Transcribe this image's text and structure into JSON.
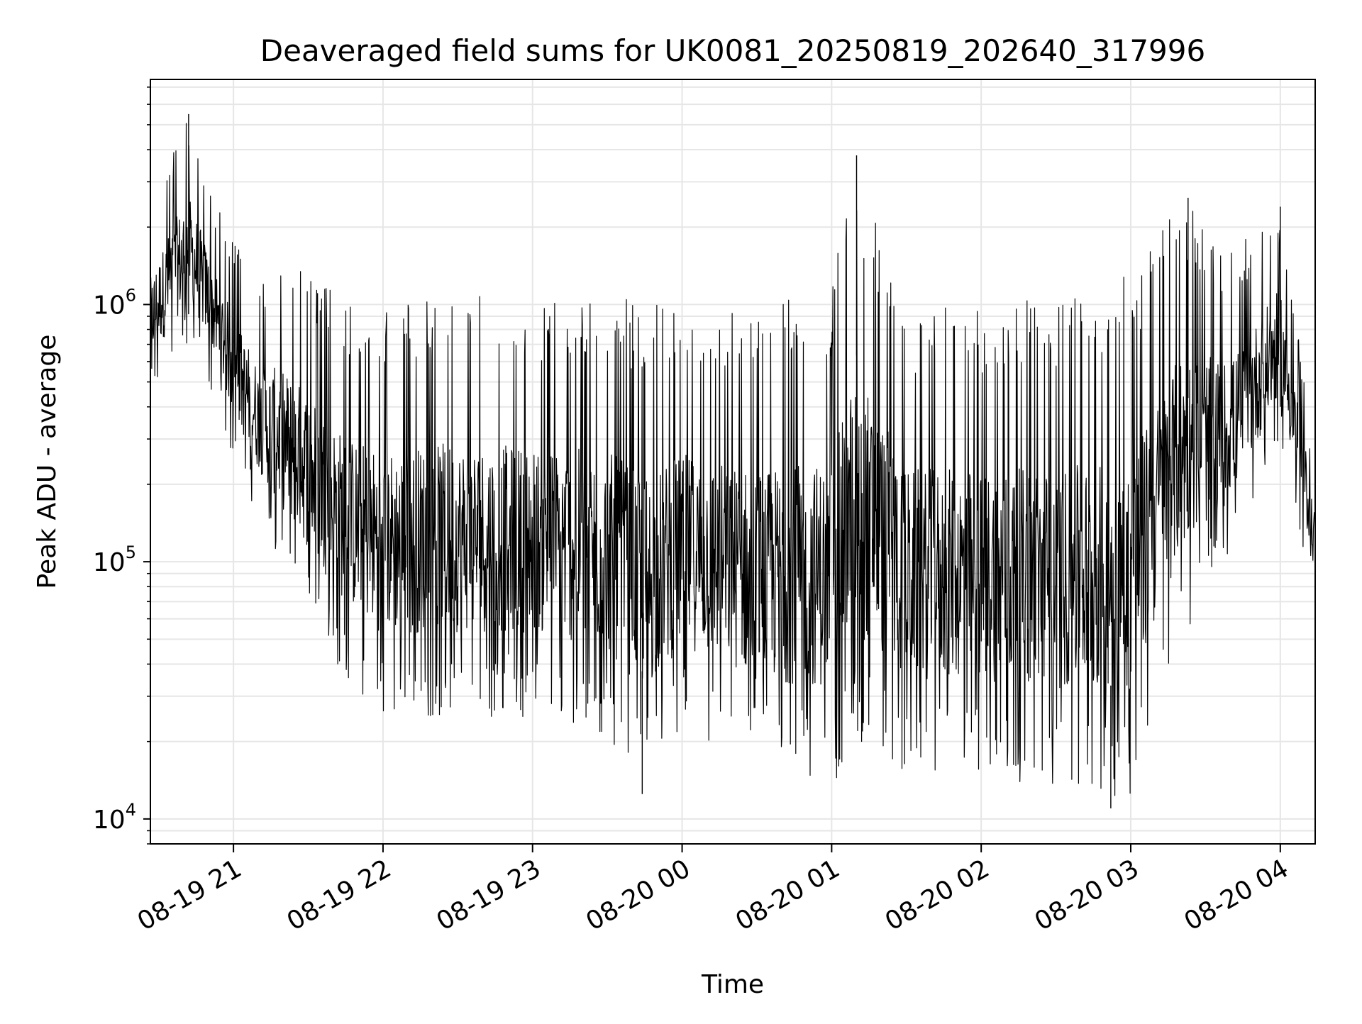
{
  "chart_data": {
    "type": "line",
    "title": "Deaveraged field sums for UK0081_20250819_202640_317996",
    "xlabel": "Time",
    "ylabel": "Peak ADU - average",
    "yscale": "log",
    "ylim": [
      8000,
      7500000
    ],
    "xlim": [
      "2025-08-19 20:26:40",
      "2025-08-20 04:14:00"
    ],
    "grid": true,
    "line_color": "#000000",
    "grid_color": "#e6e6e6",
    "x_ticks": [
      {
        "value": "2025-08-19 21:00",
        "label": "08-19 21"
      },
      {
        "value": "2025-08-19 22:00",
        "label": "08-19 22"
      },
      {
        "value": "2025-08-19 23:00",
        "label": "08-19 23"
      },
      {
        "value": "2025-08-20 00:00",
        "label": "08-20 00"
      },
      {
        "value": "2025-08-20 01:00",
        "label": "08-20 01"
      },
      {
        "value": "2025-08-20 02:00",
        "label": "08-20 02"
      },
      {
        "value": "2025-08-20 03:00",
        "label": "08-20 03"
      },
      {
        "value": "2025-08-20 04:00",
        "label": "08-20 04"
      }
    ],
    "y_ticks": [
      {
        "value": 10000,
        "base": "10",
        "exp": "4"
      },
      {
        "value": 100000,
        "base": "10",
        "exp": "5"
      },
      {
        "value": 1000000,
        "base": "10",
        "exp": "6"
      }
    ],
    "series": [
      {
        "envelope": [
          {
            "t": "2025-08-19 20:26:40",
            "low": 450000,
            "high": 2200000
          },
          {
            "t": "2025-08-19 20:35",
            "low": 550000,
            "high": 4000000
          },
          {
            "t": "2025-08-19 20:42",
            "low": 700000,
            "high": 5500000
          },
          {
            "t": "2025-08-19 20:50",
            "low": 500000,
            "high": 3000000
          },
          {
            "t": "2025-08-19 21:00",
            "low": 250000,
            "high": 1800000
          },
          {
            "t": "2025-08-19 21:10",
            "low": 150000,
            "high": 1200000
          },
          {
            "t": "2025-08-19 21:20",
            "low": 90000,
            "high": 1500000
          },
          {
            "t": "2025-08-19 21:30",
            "low": 60000,
            "high": 1400000
          },
          {
            "t": "2025-08-19 21:45",
            "low": 35000,
            "high": 1000000
          },
          {
            "t": "2025-08-19 22:00",
            "low": 25000,
            "high": 1000000
          },
          {
            "t": "2025-08-19 22:30",
            "low": 25000,
            "high": 1100000
          },
          {
            "t": "2025-08-19 23:00",
            "low": 25000,
            "high": 1050000
          },
          {
            "t": "2025-08-19 23:30",
            "low": 20000,
            "high": 1100000
          },
          {
            "t": "2025-08-19 23:45",
            "low": 13000,
            "high": 1000000
          },
          {
            "t": "2025-08-20 00:00",
            "low": 22000,
            "high": 1000000
          },
          {
            "t": "2025-08-20 00:30",
            "low": 15000,
            "high": 1000000
          },
          {
            "t": "2025-08-20 01:00",
            "low": 13000,
            "high": 1200000
          },
          {
            "t": "2025-08-20 01:10",
            "low": 18000,
            "high": 3800000
          },
          {
            "t": "2025-08-20 01:30",
            "low": 15000,
            "high": 1000000
          },
          {
            "t": "2025-08-20 02:00",
            "low": 15000,
            "high": 1000000
          },
          {
            "t": "2025-08-20 02:30",
            "low": 13000,
            "high": 1100000
          },
          {
            "t": "2025-08-20 03:00",
            "low": 12000,
            "high": 1300000
          },
          {
            "t": "2025-08-20 03:20",
            "low": 50000,
            "high": 2600000
          },
          {
            "t": "2025-08-20 03:40",
            "low": 100000,
            "high": 1600000
          },
          {
            "t": "2025-08-20 04:00",
            "low": 300000,
            "high": 2400000
          },
          {
            "t": "2025-08-20 04:10",
            "low": 100000,
            "high": 500000
          },
          {
            "t": "2025-08-20 04:14",
            "low": 90000,
            "high": 200000
          }
        ],
        "spikes": [
          {
            "t": "2025-08-19 20:42",
            "value": 5500000
          },
          {
            "t": "2025-08-20 01:10",
            "value": 3800000
          },
          {
            "t": "2025-08-20 03:23",
            "value": 2600000
          },
          {
            "t": "2025-08-20 04:00",
            "value": 2400000
          },
          {
            "t": "2025-08-20 02:52",
            "value": 11000
          },
          {
            "t": "2025-08-19 23:44",
            "value": 12500
          }
        ]
      }
    ]
  }
}
